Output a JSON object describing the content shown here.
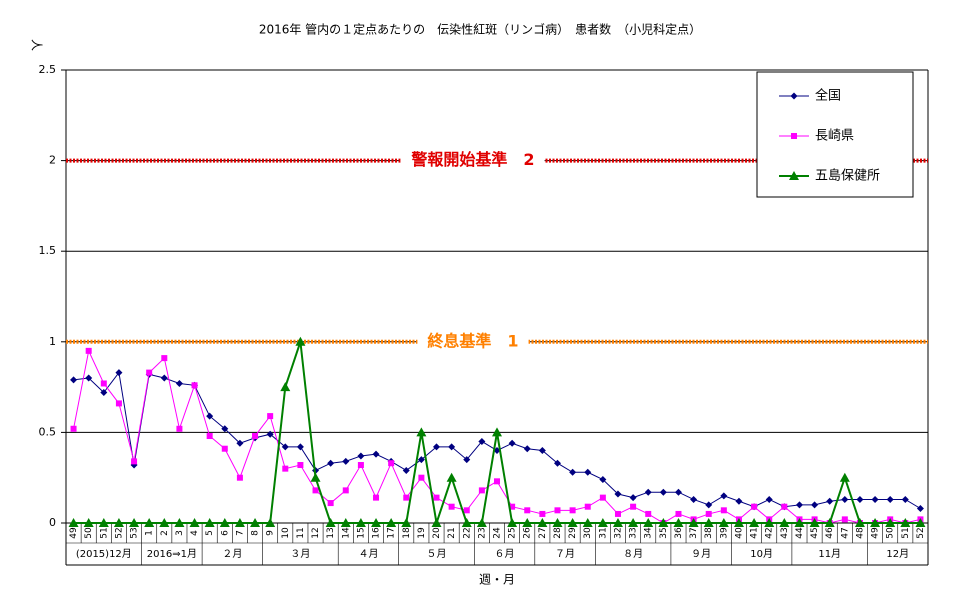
{
  "chart_data": {
    "type": "line",
    "title": "2016年 管内の１定点あたりの　伝染性紅斑（リンゴ病）　患者数　（小児科定点）",
    "ylabel": "人",
    "xlabel": "週・月",
    "categories": [
      "49",
      "50",
      "51",
      "52",
      "53",
      "1",
      "2",
      "3",
      "4",
      "5",
      "6",
      "7",
      "8",
      "9",
      "10",
      "11",
      "12",
      "13",
      "14",
      "15",
      "16",
      "17",
      "18",
      "19",
      "20",
      "21",
      "22",
      "23",
      "24",
      "25",
      "26",
      "27",
      "28",
      "29",
      "30",
      "31",
      "32",
      "33",
      "34",
      "35",
      "36",
      "37",
      "38",
      "39",
      "40",
      "41",
      "42",
      "43",
      "44",
      "45",
      "46",
      "47",
      "48",
      "49",
      "50",
      "51",
      "52"
    ],
    "month_groups": [
      {
        "label": "(2015)12月",
        "weeks": 5
      },
      {
        "label": "2016⇒1月",
        "weeks": 4
      },
      {
        "label": "２月",
        "weeks": 4
      },
      {
        "label": "３月",
        "weeks": 5
      },
      {
        "label": "４月",
        "weeks": 4
      },
      {
        "label": "５月",
        "weeks": 5
      },
      {
        "label": "６月",
        "weeks": 4
      },
      {
        "label": "７月",
        "weeks": 4
      },
      {
        "label": "８月",
        "weeks": 5
      },
      {
        "label": "９月",
        "weeks": 4
      },
      {
        "label": "10月",
        "weeks": 4
      },
      {
        "label": "11月",
        "weeks": 5
      },
      {
        "label": "12月",
        "weeks": 4
      }
    ],
    "series": [
      {
        "name": "全国",
        "color": "#000080",
        "marker": "diamond",
        "values": [
          0.79,
          0.8,
          0.72,
          0.83,
          0.32,
          0.82,
          0.8,
          0.77,
          0.76,
          0.59,
          0.52,
          0.44,
          0.47,
          0.49,
          0.42,
          0.42,
          0.29,
          0.33,
          0.34,
          0.37,
          0.38,
          0.34,
          0.29,
          0.35,
          0.42,
          0.42,
          0.35,
          0.45,
          0.4,
          0.44,
          0.41,
          0.4,
          0.33,
          0.28,
          0.28,
          0.24,
          0.16,
          0.14,
          0.17,
          0.17,
          0.17,
          0.13,
          0.1,
          0.15,
          0.12,
          0.09,
          0.13,
          0.09,
          0.1,
          0.1,
          0.12,
          0.13,
          0.13,
          0.13,
          0.13,
          0.13,
          0.08
        ]
      },
      {
        "name": "長崎県",
        "color": "#ff00ff",
        "marker": "square",
        "values": [
          0.52,
          0.95,
          0.77,
          0.66,
          0.34,
          0.83,
          0.91,
          0.52,
          0.76,
          0.48,
          0.41,
          0.25,
          0.48,
          0.59,
          0.3,
          0.32,
          0.18,
          0.11,
          0.18,
          0.32,
          0.14,
          0.33,
          0.14,
          0.25,
          0.14,
          0.09,
          0.07,
          0.18,
          0.23,
          0.09,
          0.07,
          0.05,
          0.07,
          0.07,
          0.09,
          0.14,
          0.05,
          0.09,
          0.05,
          0,
          0.05,
          0.02,
          0.05,
          0.07,
          0.02,
          0.09,
          0.02,
          0.09,
          0.02,
          0.02,
          0,
          0.02,
          0,
          0,
          0.02,
          0,
          0.02
        ]
      },
      {
        "name": "五島保健所",
        "color": "#008000",
        "marker": "triangle",
        "values": [
          0,
          0,
          0,
          0,
          0,
          0,
          0,
          0,
          0,
          0,
          0,
          0,
          0,
          0,
          0.75,
          1,
          0.25,
          0,
          0,
          0,
          0,
          0,
          0,
          0.5,
          0,
          0.25,
          0,
          0,
          0.5,
          0,
          0,
          0,
          0,
          0,
          0,
          0,
          0,
          0,
          0,
          0,
          0,
          0,
          0,
          0,
          0,
          0,
          0,
          0,
          0,
          0,
          0,
          0.25,
          0,
          0,
          0,
          0,
          0
        ]
      }
    ],
    "reference_lines": [
      {
        "value": 2,
        "label": "警報開始基準　2",
        "color": "#e00000"
      },
      {
        "value": 1,
        "label": "終息基準　1",
        "color": "#ff8000"
      }
    ],
    "ylim": [
      0,
      2.5
    ],
    "yticks": [
      0,
      0.5,
      1,
      1.5,
      2,
      2.5
    ],
    "grid": true,
    "legend": "upper right"
  }
}
